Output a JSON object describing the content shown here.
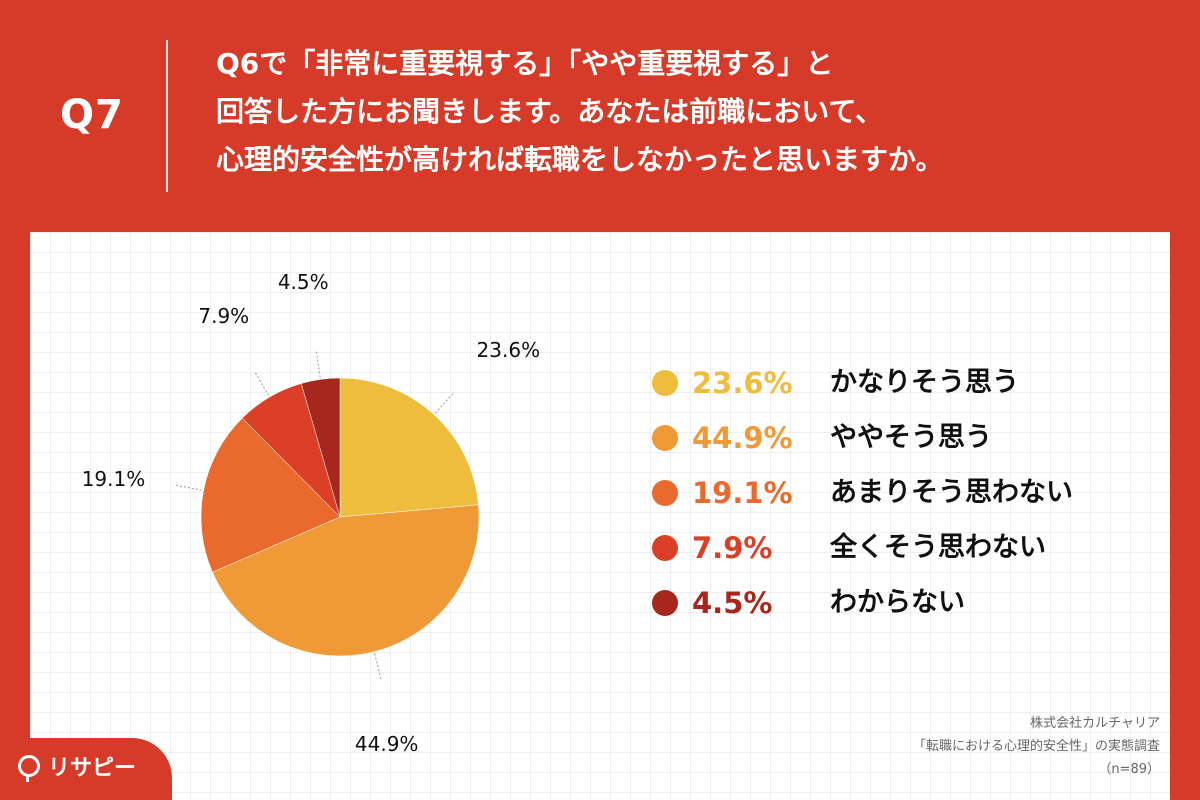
{
  "question": {
    "number": "Q7",
    "lines": [
      "Q6で「非常に重要視する」「やや重要視する」と",
      "回答した方にお聞きします。あなたは前職において、",
      "心理的安全性が高ければ転職をしなかったと思いますか。"
    ]
  },
  "chart_data": {
    "type": "pie",
    "slices": [
      {
        "label": "かなりそう思う",
        "value": 23.6,
        "display": "23.6%",
        "color": "#efbd3e"
      },
      {
        "label": "ややそう思う",
        "value": 44.9,
        "display": "44.9%",
        "color": "#f09a37"
      },
      {
        "label": "あまりそう思わない",
        "value": 19.1,
        "display": "19.1%",
        "color": "#ea6a2d"
      },
      {
        "label": "全くそう思わない",
        "value": 7.9,
        "display": "7.9%",
        "color": "#db4027"
      },
      {
        "label": "わからない",
        "value": 4.5,
        "display": "4.5%",
        "color": "#a8271c"
      }
    ],
    "start_angle_deg": 0,
    "direction": "clockwise",
    "legend_position": "right"
  },
  "source": {
    "company": "株式会社カルチャリア",
    "survey": "「転職における心理的安全性」の実態調査",
    "sample": "（n=89）"
  },
  "brand": {
    "logo_text": "リサピー",
    "logo_icon": "pin-icon",
    "accent_color": "#d63a28"
  }
}
